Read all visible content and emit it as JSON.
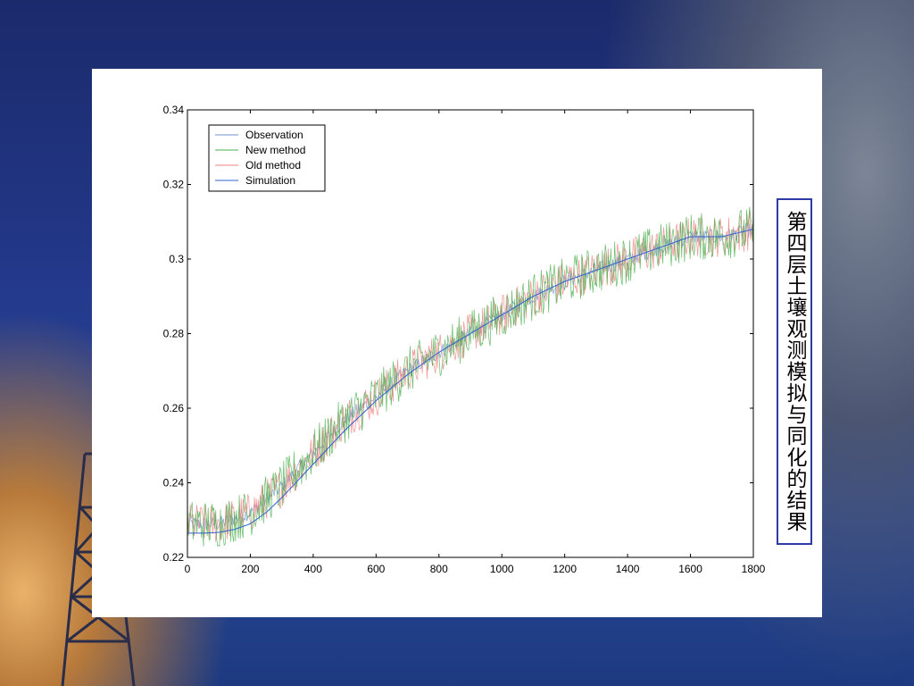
{
  "slide": {
    "side_label": "第四层土壤观测模拟与同化的结果"
  },
  "colors": {
    "background": "#23388a",
    "observation": "#7090d0",
    "new_method": "#4caf50",
    "old_method": "#f08080",
    "simulation": "#3060d0",
    "label_border": "#2d3aa8"
  },
  "chart_data": {
    "type": "line",
    "title": "",
    "xlabel": "",
    "ylabel": "",
    "xlim": [
      0,
      1800
    ],
    "ylim": [
      0.22,
      0.34
    ],
    "xticks": [
      0,
      200,
      400,
      600,
      800,
      1000,
      1200,
      1400,
      1600,
      1800
    ],
    "yticks": [
      0.22,
      0.24,
      0.26,
      0.28,
      0.3,
      0.32,
      0.34
    ],
    "ytick_labels": [
      "0.22",
      "0.24",
      "0.26",
      "0.28",
      "0.3",
      "0.32",
      "0.34"
    ],
    "grid": false,
    "legend_position": "top-left",
    "series": [
      {
        "name": "Observation",
        "color": "#7090d0",
        "noise": 0.002,
        "x": [
          0,
          100,
          200,
          300,
          400,
          500,
          600,
          700,
          800,
          900,
          1000,
          1100,
          1200,
          1300,
          1400,
          1500,
          1600,
          1700,
          1800
        ],
        "y": [
          0.229,
          0.229,
          0.232,
          0.239,
          0.248,
          0.257,
          0.263,
          0.27,
          0.275,
          0.28,
          0.285,
          0.29,
          0.294,
          0.297,
          0.3,
          0.303,
          0.306,
          0.306,
          0.308
        ]
      },
      {
        "name": "New method",
        "color": "#4caf50",
        "noise": 0.0065,
        "x": [
          0,
          100,
          200,
          300,
          400,
          500,
          600,
          700,
          800,
          900,
          1000,
          1100,
          1200,
          1300,
          1400,
          1500,
          1600,
          1700,
          1800
        ],
        "y": [
          0.229,
          0.229,
          0.232,
          0.239,
          0.248,
          0.257,
          0.263,
          0.27,
          0.275,
          0.28,
          0.285,
          0.29,
          0.294,
          0.297,
          0.3,
          0.303,
          0.306,
          0.306,
          0.308
        ]
      },
      {
        "name": "Old method",
        "color": "#f08080",
        "noise": 0.0055,
        "x": [
          0,
          100,
          200,
          300,
          400,
          500,
          600,
          700,
          800,
          900,
          1000,
          1100,
          1200,
          1300,
          1400,
          1500,
          1600,
          1700,
          1800
        ],
        "y": [
          0.229,
          0.229,
          0.232,
          0.239,
          0.248,
          0.257,
          0.263,
          0.27,
          0.275,
          0.28,
          0.285,
          0.29,
          0.294,
          0.297,
          0.3,
          0.303,
          0.306,
          0.306,
          0.308
        ]
      },
      {
        "name": "Simulation",
        "color": "#3060d0",
        "noise": 0,
        "x": [
          0,
          50,
          100,
          150,
          200,
          250,
          300,
          400,
          500,
          600,
          700,
          800,
          900,
          1000,
          1100,
          1200,
          1300,
          1400,
          1500,
          1600,
          1700,
          1800
        ],
        "y": [
          0.2265,
          0.2265,
          0.2267,
          0.2275,
          0.229,
          0.232,
          0.236,
          0.245,
          0.254,
          0.262,
          0.269,
          0.275,
          0.28,
          0.285,
          0.29,
          0.294,
          0.297,
          0.3,
          0.303,
          0.306,
          0.306,
          0.308
        ]
      }
    ]
  }
}
